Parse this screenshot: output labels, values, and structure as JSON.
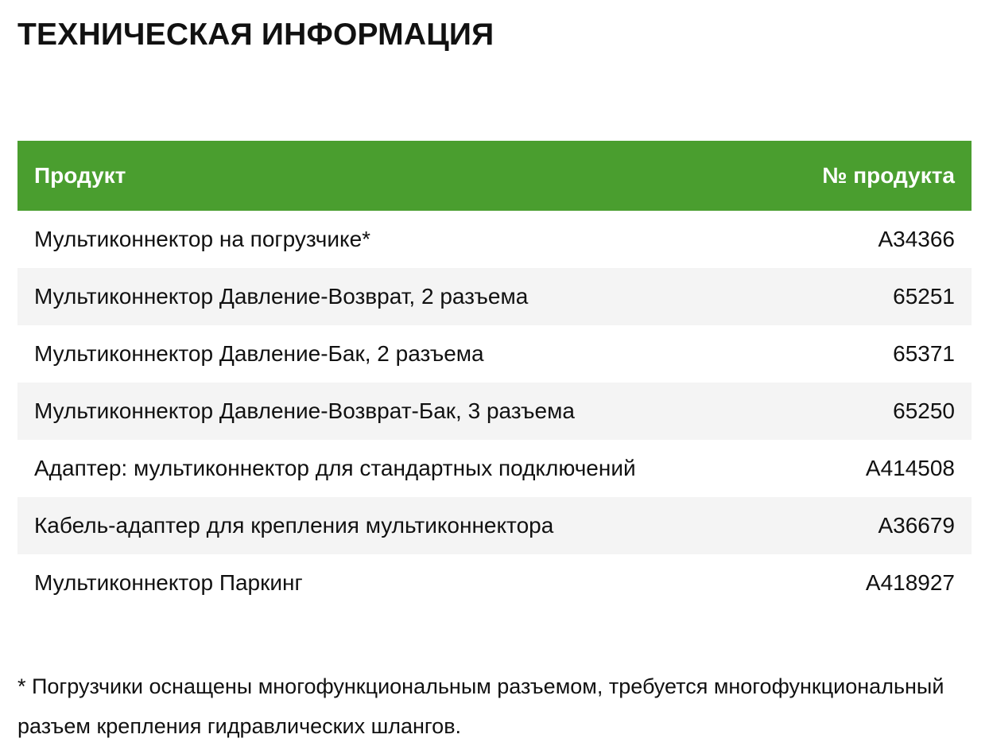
{
  "title": "ТЕХНИЧЕСКАЯ ИНФОРМАЦИЯ",
  "colors": {
    "header_bg": "#4a9e2f",
    "stripe": "#f4f4f4"
  },
  "table": {
    "headers": [
      "Продукт",
      "№ продукта"
    ],
    "rows": [
      {
        "product": "Мультиконнектор на погрузчике*",
        "number": "A34366"
      },
      {
        "product": "Мультиконнектор Давление-Возврат, 2 разъема",
        "number": "65251"
      },
      {
        "product": "Мультиконнектор Давление-Бак, 2 разъема",
        "number": "65371"
      },
      {
        "product": "Мультиконнектор Давление-Возврат-Бак, 3 разъема",
        "number": "65250"
      },
      {
        "product": "Адаптер: мультиконнектор для стандартных подключений",
        "number": "A414508"
      },
      {
        "product": "Кабель-адаптер для крепления мультиконнектора",
        "number": "A36679"
      },
      {
        "product": "Мультиконнектор Паркинг",
        "number": "A418927"
      }
    ]
  },
  "footnote": "* Погрузчики оснащены многофункциональным разъемом, требуется многофункциональный разъем крепления гидравлических шлангов."
}
